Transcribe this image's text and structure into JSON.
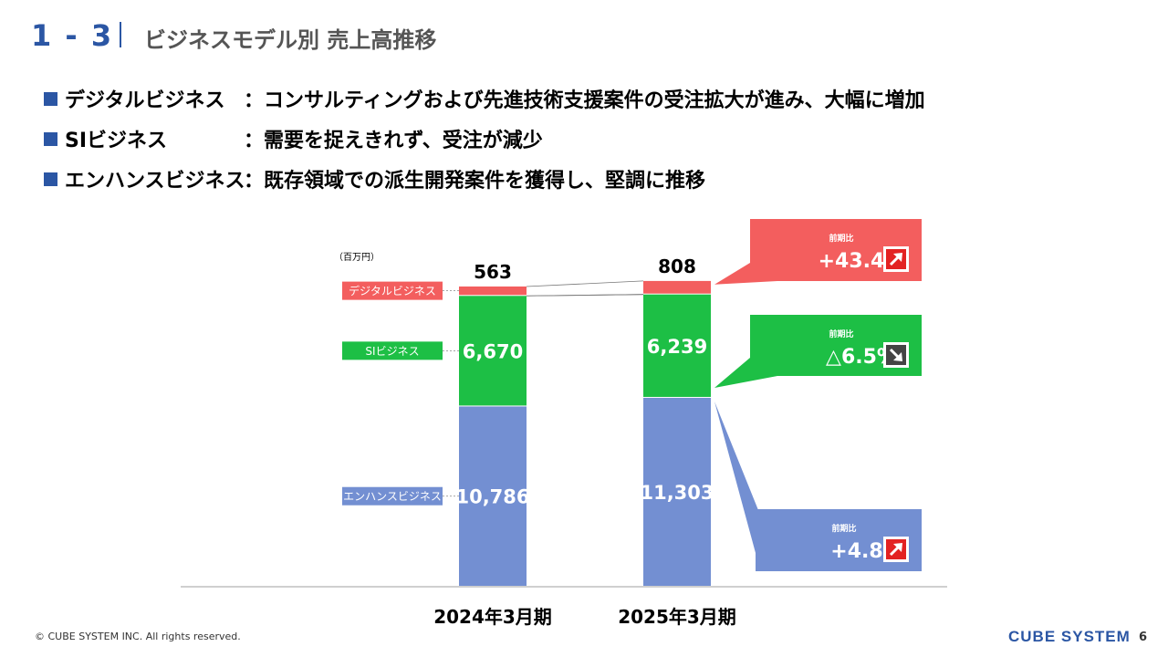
{
  "header": {
    "section_number": "1 - 3",
    "title": "ビジネスモデル別 売上高推移"
  },
  "bullets": [
    {
      "name": "デジタルビジネス",
      "desc": "：コンサルティングおよび先進技術支援案件の受注拡大が進み、大幅に増加"
    },
    {
      "name": "SIビジネス",
      "desc": "：需要を捉えきれず、受注が減少"
    },
    {
      "name": "エンハンスビジネス",
      "desc": "：既存領域での派生開発案件を獲得し、堅調に推移"
    }
  ],
  "chart_data": {
    "type": "bar",
    "stacked": true,
    "unit_label": "（百万円）",
    "categories": [
      "2024年3月期",
      "2025年3月期"
    ],
    "series": [
      {
        "name": "エンハンスビジネス",
        "values": [
          10786,
          11303
        ],
        "labels": [
          "10,786",
          "11,303"
        ],
        "color": "#738fd2"
      },
      {
        "name": "SIビジネス",
        "values": [
          6670,
          6239
        ],
        "labels": [
          "6,670",
          "6,239"
        ],
        "color": "#1dbf45"
      },
      {
        "name": "デジタルビジネス",
        "values": [
          563,
          808
        ],
        "labels": [
          "563",
          "808"
        ],
        "color": "#f35e5e"
      }
    ],
    "yoy_callouts": [
      {
        "series": "デジタルビジネス",
        "caption": "前期比",
        "value": "+43.4%",
        "direction": "up",
        "color": "#f35e5e"
      },
      {
        "series": "SIビジネス",
        "caption": "前期比",
        "value": "△6.5%",
        "direction": "down",
        "color": "#1dbf45"
      },
      {
        "series": "エンハンスビジネス",
        "caption": "前期比",
        "value": "+4.8%",
        "direction": "up",
        "color": "#738fd2"
      }
    ]
  },
  "footer": {
    "copyright": "© CUBE SYSTEM INC. All rights reserved.",
    "logo": "CUBE SYSTEM",
    "page_number": "6"
  }
}
